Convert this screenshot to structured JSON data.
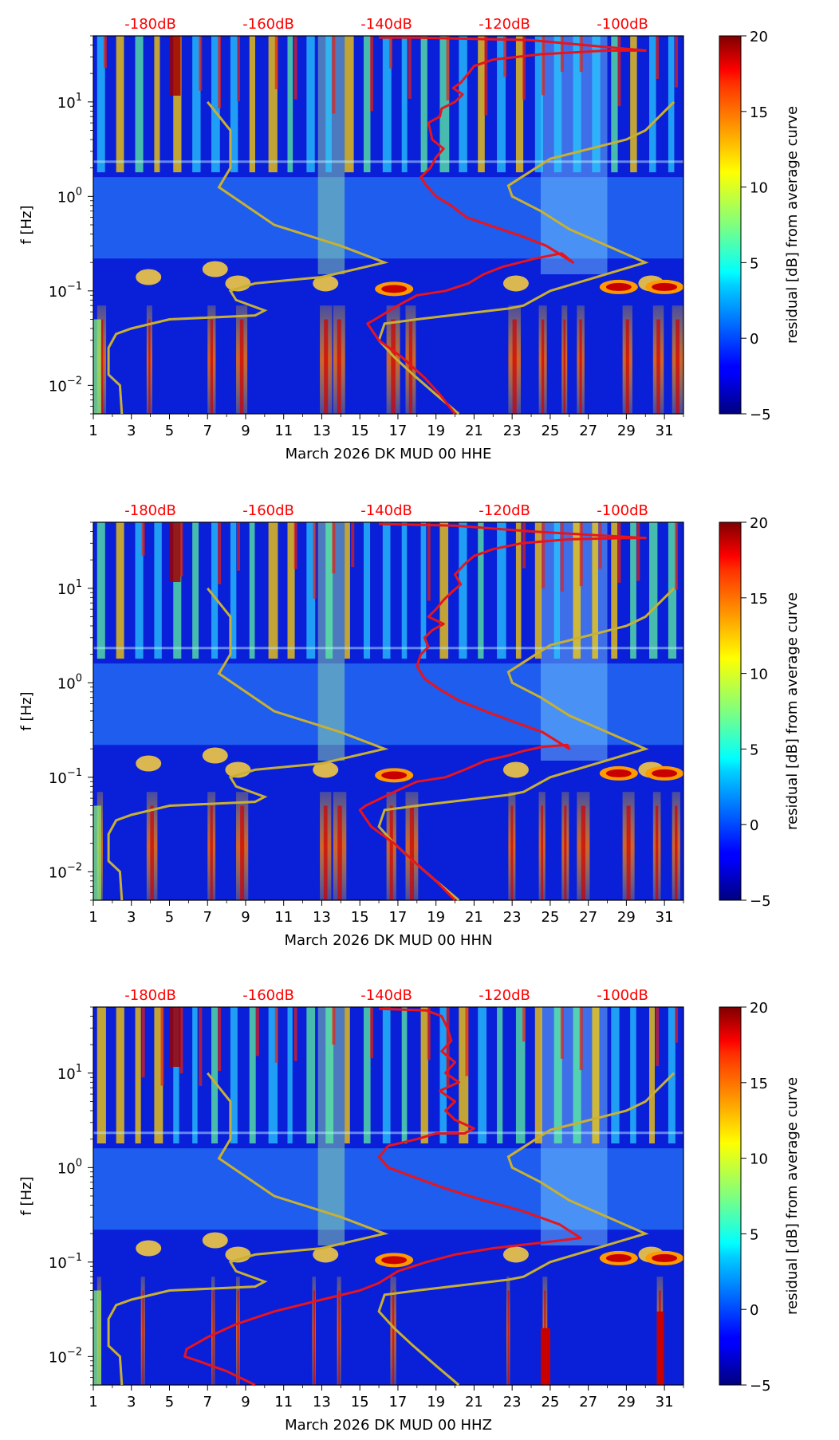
{
  "colors": {
    "reference_curves": "#c8b032",
    "psd_curve": "#e8141c",
    "db_labels": "#ff0000",
    "colormap": "jet"
  },
  "chart_data": [
    {
      "type": "heatmap",
      "panel": "HHE",
      "xlabel": "March 2026 DK MUD 00 HHE",
      "ylabel": "f [Hz]",
      "x_ticks": [
        "1",
        "3",
        "5",
        "7",
        "9",
        "11",
        "13",
        "15",
        "17",
        "19",
        "21",
        "23",
        "25",
        "27",
        "29",
        "31"
      ],
      "xlim": [
        1,
        32
      ],
      "ylim_hz": [
        0.005,
        50
      ],
      "y_ticks": [
        {
          "value": 10,
          "base": "10",
          "exp": "1"
        },
        {
          "value": 1,
          "base": "10",
          "exp": "0"
        },
        {
          "value": 0.1,
          "base": "10",
          "exp": "−1"
        },
        {
          "value": 0.01,
          "base": "10",
          "exp": "−2"
        }
      ],
      "top_axis_labels": [
        "-180dB",
        "-160dB",
        "-140dB",
        "-120dB",
        "-100dB"
      ],
      "top_axis_day_positions": [
        4,
        10.2,
        16.4,
        22.6,
        28.8
      ],
      "colorbar": {
        "label": "residual [dB] from average curve",
        "ticks": [
          "20",
          "15",
          "10",
          "5",
          "0",
          "−5"
        ],
        "range": [
          -5,
          20
        ]
      },
      "psd_curve": {
        "x": [
          20,
          19.2,
          18.4,
          17.2,
          16.0,
          15.4,
          15.8,
          17.0,
          18.0,
          19.5,
          20.7,
          21.5,
          22.5,
          23.4,
          24.2,
          25.6,
          26.2,
          24.8,
          23.5,
          22.0,
          20.6,
          19.8,
          19.0,
          18.5,
          18.2,
          18.7,
          19.0,
          19.4,
          18.8,
          18.7,
          18.6,
          19.2,
          19.3,
          20.0,
          20.4,
          19.9,
          20.3,
          20.7,
          21.0,
          22.0,
          24.5,
          28.0,
          30.0,
          24.0,
          18.0,
          16.0
        ],
        "f": [
          0.005,
          0.008,
          0.012,
          0.02,
          0.03,
          0.045,
          0.05,
          0.07,
          0.09,
          0.1,
          0.12,
          0.15,
          0.18,
          0.2,
          0.22,
          0.25,
          0.2,
          0.3,
          0.38,
          0.48,
          0.6,
          0.8,
          1.0,
          1.3,
          1.6,
          2.0,
          2.6,
          3.2,
          4.0,
          5.0,
          6.0,
          7.0,
          8.5,
          10.0,
          12.0,
          14.0,
          16.0,
          20.0,
          24.0,
          28.0,
          32.0,
          35.0,
          35.0,
          45.0,
          48.0,
          48.0
        ]
      }
    },
    {
      "type": "heatmap",
      "panel": "HHN",
      "xlabel": "March 2026 DK MUD 00 HHN",
      "ylabel": "f [Hz]",
      "x_ticks": [
        "1",
        "3",
        "5",
        "7",
        "9",
        "11",
        "13",
        "15",
        "17",
        "19",
        "21",
        "23",
        "25",
        "27",
        "29",
        "31"
      ],
      "xlim": [
        1,
        32
      ],
      "ylim_hz": [
        0.005,
        50
      ],
      "y_ticks": [
        {
          "value": 10,
          "base": "10",
          "exp": "1"
        },
        {
          "value": 1,
          "base": "10",
          "exp": "0"
        },
        {
          "value": 0.1,
          "base": "10",
          "exp": "−1"
        },
        {
          "value": 0.01,
          "base": "10",
          "exp": "−2"
        }
      ],
      "top_axis_labels": [
        "-180dB",
        "-160dB",
        "-140dB",
        "-120dB",
        "-100dB"
      ],
      "top_axis_day_positions": [
        4,
        10.2,
        16.4,
        22.6,
        28.8
      ],
      "colorbar": {
        "label": "residual [dB] from average curve",
        "ticks": [
          "20",
          "15",
          "10",
          "5",
          "0",
          "−5"
        ],
        "range": [
          -5,
          20
        ]
      },
      "psd_curve": {
        "x": [
          20,
          19.0,
          18.0,
          16.8,
          15.6,
          15.0,
          15.3,
          16.8,
          18.0,
          19.5,
          20.5,
          21.6,
          22.8,
          23.6,
          24.6,
          25.9,
          26.0,
          24.6,
          23.2,
          21.6,
          20.2,
          19.2,
          18.4,
          18.0,
          18.2,
          18.6,
          18.4,
          18.8,
          19.4,
          18.6,
          19.0,
          19.4,
          19.8,
          20.3,
          20.0,
          20.5,
          21.0,
          22.0,
          23.5,
          26.0,
          29.0,
          30.0,
          24.0,
          20.0,
          16.0
        ],
        "f": [
          0.005,
          0.008,
          0.012,
          0.02,
          0.03,
          0.045,
          0.05,
          0.07,
          0.09,
          0.1,
          0.12,
          0.15,
          0.17,
          0.19,
          0.21,
          0.22,
          0.2,
          0.3,
          0.38,
          0.5,
          0.65,
          0.85,
          1.1,
          1.5,
          2.0,
          2.4,
          3.0,
          3.6,
          4.2,
          5.0,
          6.0,
          7.5,
          9.0,
          11.0,
          14.0,
          18.0,
          22.0,
          26.0,
          30.0,
          33.0,
          34.0,
          34.0,
          40.0,
          46.0,
          48.0
        ]
      }
    },
    {
      "type": "heatmap",
      "panel": "HHZ",
      "xlabel": "March 2026 DK MUD 00 HHZ",
      "ylabel": "f [Hz]",
      "x_ticks": [
        "1",
        "3",
        "5",
        "7",
        "9",
        "11",
        "13",
        "15",
        "17",
        "19",
        "21",
        "23",
        "25",
        "27",
        "29",
        "31"
      ],
      "xlim": [
        1,
        32
      ],
      "ylim_hz": [
        0.005,
        50
      ],
      "y_ticks": [
        {
          "value": 10,
          "base": "10",
          "exp": "1"
        },
        {
          "value": 1,
          "base": "10",
          "exp": "0"
        },
        {
          "value": 0.1,
          "base": "10",
          "exp": "−1"
        },
        {
          "value": 0.01,
          "base": "10",
          "exp": "−2"
        }
      ],
      "top_axis_labels": [
        "-180dB",
        "-160dB",
        "-140dB",
        "-120dB",
        "-100dB"
      ],
      "top_axis_day_positions": [
        4,
        10.2,
        16.4,
        22.6,
        28.8
      ],
      "colorbar": {
        "label": "residual [dB] from average curve",
        "ticks": [
          "20",
          "15",
          "10",
          "5",
          "0",
          "−5"
        ],
        "range": [
          -5,
          20
        ]
      },
      "psd_curve": {
        "x": [
          9.5,
          8.0,
          6.5,
          5.8,
          5.9,
          7.0,
          8.5,
          10.5,
          13.0,
          15.0,
          16.0,
          17.0,
          18.5,
          20.0,
          22.0,
          24.5,
          26.6,
          25.5,
          23.5,
          21.5,
          19.5,
          17.8,
          16.5,
          16.0,
          16.5,
          18.0,
          19.0,
          20.5,
          21.0,
          20.0,
          19.5,
          20.0,
          19.2,
          20.2,
          19.5,
          20.0,
          19.3,
          19.8,
          19.6,
          19.3,
          18.5,
          16.0
        ],
        "f": [
          0.005,
          0.007,
          0.009,
          0.01,
          0.012,
          0.016,
          0.022,
          0.03,
          0.04,
          0.05,
          0.06,
          0.08,
          0.1,
          0.12,
          0.14,
          0.16,
          0.18,
          0.25,
          0.35,
          0.45,
          0.6,
          0.8,
          1.0,
          1.3,
          1.7,
          2.0,
          2.3,
          2.3,
          2.6,
          3.2,
          4.0,
          5.0,
          6.5,
          8.0,
          10.0,
          13.0,
          17.0,
          22.0,
          30.0,
          40.0,
          46.0,
          48.0
        ]
      }
    }
  ],
  "reference_curves": {
    "nhnm": {
      "x": [
        20.2,
        19.0,
        17.8,
        16.8,
        16.0,
        16.3,
        18.0,
        22.8,
        23.6,
        25.0,
        30.0,
        28.0,
        26.0,
        24.5,
        23.0,
        22.8,
        25.0,
        29.0,
        30.0,
        31.5
      ],
      "f": [
        0.005,
        0.008,
        0.013,
        0.02,
        0.03,
        0.045,
        0.05,
        0.065,
        0.07,
        0.1,
        0.2,
        0.3,
        0.45,
        0.7,
        1.0,
        1.3,
        2.5,
        4.0,
        5.0,
        10.0
      ]
    },
    "nlnm": {
      "x": [
        2.5,
        2.4,
        1.8,
        1.8,
        2.2,
        3.0,
        5.0,
        9.5,
        10.0,
        8.5,
        8.2,
        9.5,
        13.0,
        16.3,
        14.0,
        10.5,
        7.6,
        8.2,
        8.2,
        7.0
      ],
      "f": [
        0.005,
        0.01,
        0.013,
        0.025,
        0.035,
        0.04,
        0.05,
        0.055,
        0.062,
        0.08,
        0.1,
        0.12,
        0.14,
        0.2,
        0.3,
        0.5,
        1.25,
        2.0,
        5.0,
        10.0
      ]
    }
  }
}
